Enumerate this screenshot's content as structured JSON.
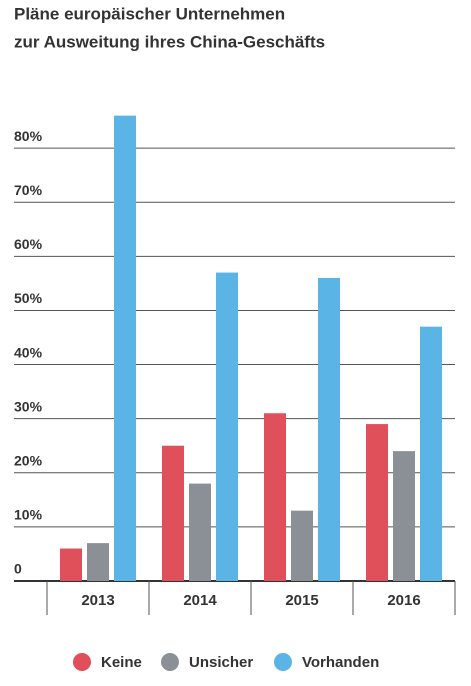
{
  "chart_data": {
    "type": "bar",
    "title": [
      "Pläne europäischer Unternehmen",
      "zur Ausweitung ihres China-Geschäfts"
    ],
    "categories": [
      "2013",
      "2014",
      "2015",
      "2016"
    ],
    "series": [
      {
        "name": "Keine",
        "color": "#e0505a",
        "values": [
          6,
          25,
          31,
          29
        ]
      },
      {
        "name": "Unsicher",
        "color": "#8a9096",
        "values": [
          7,
          18,
          13,
          24
        ]
      },
      {
        "name": "Vorhanden",
        "color": "#5ab4e5",
        "values": [
          86,
          57,
          56,
          47
        ]
      }
    ],
    "ylim": [
      0,
      90
    ],
    "yticks": [
      0,
      {
        "value": 10,
        "label": "10%"
      },
      {
        "value": 20,
        "label": "20%"
      },
      {
        "value": 30,
        "label": "30%"
      },
      {
        "value": 40,
        "label": "40%"
      },
      {
        "value": 50,
        "label": "50%"
      },
      {
        "value": 60,
        "label": "60%"
      },
      {
        "value": 70,
        "label": "70%"
      },
      {
        "value": 80,
        "label": "80%"
      }
    ],
    "grid": true
  }
}
